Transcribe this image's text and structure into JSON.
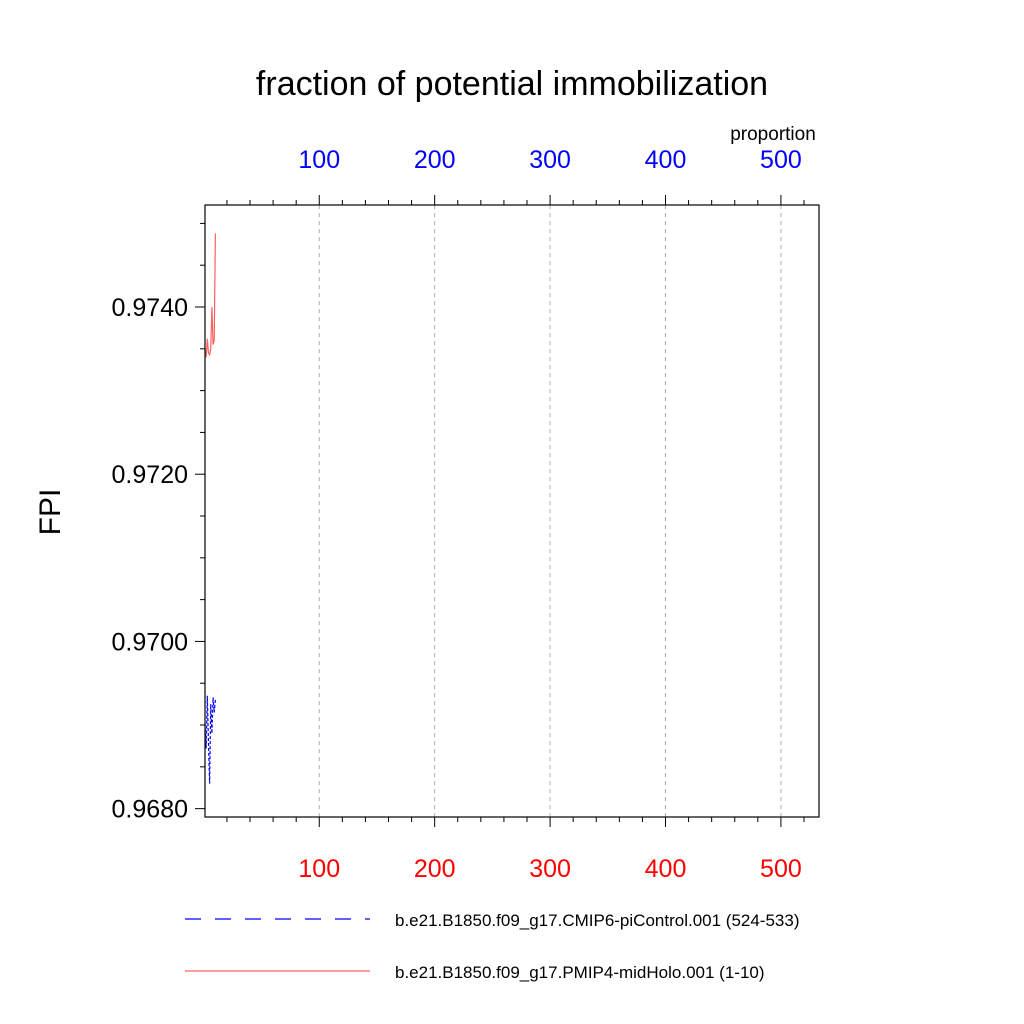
{
  "chart_data": {
    "type": "line",
    "title": "fraction of potential immobilization",
    "ylabel": "FPI",
    "top_axis_label": "proportion",
    "xlim": [
      1,
      533
    ],
    "ylim": [
      0.9679,
      0.97522
    ],
    "x_ticks": [
      100,
      200,
      300,
      400,
      500
    ],
    "x_tick_labels": [
      "100",
      "200",
      "300",
      "400",
      "500"
    ],
    "y_ticks": [
      0.968,
      0.97,
      0.972,
      0.974
    ],
    "y_tick_labels": [
      "0.9680",
      "0.9700",
      "0.9720",
      "0.9740"
    ],
    "grid": "vertical dashed at major x ticks",
    "bottom_tick_color": "#ff0000",
    "top_tick_color": "#0000ff",
    "series": [
      {
        "name": "b.e21.B1850.f09_g17.CMIP6-piControl.001 (524-533)",
        "color": "#0000ff",
        "dash": "dashed",
        "x": [
          1,
          2,
          3,
          4,
          5,
          6,
          7,
          8,
          9,
          10
        ],
        "y": [
          0.96902,
          0.96872,
          0.96935,
          0.9688,
          0.9683,
          0.96925,
          0.9689,
          0.96933,
          0.96915,
          0.9693
        ]
      },
      {
        "name": "b.e21.B1850.f09_g17.PMIP4-midHolo.001 (1-10)",
        "color": "#ff6060",
        "dash": "solid",
        "x": [
          1,
          2,
          3,
          4,
          5,
          6,
          7,
          8,
          9,
          10
        ],
        "y": [
          0.9735,
          0.9734,
          0.97362,
          0.97345,
          0.97343,
          0.9735,
          0.974,
          0.97355,
          0.9736,
          0.97488
        ]
      }
    ],
    "legend_position": "bottom"
  }
}
